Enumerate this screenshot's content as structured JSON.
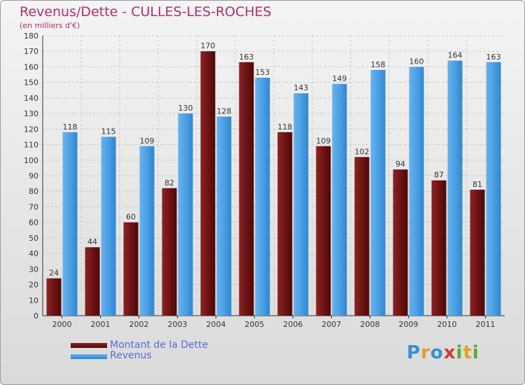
{
  "chart_data": {
    "type": "bar",
    "title": "Revenus/Dette - CULLES-LES-ROCHES",
    "subtitle": "(en milliers d'€)",
    "categories": [
      "2000",
      "2001",
      "2002",
      "2003",
      "2004",
      "2005",
      "2006",
      "2007",
      "2008",
      "2009",
      "2010",
      "2011"
    ],
    "series": [
      {
        "name": "Montant de la Dette",
        "color": "#7a1a1a",
        "values": [
          24,
          44,
          60,
          82,
          170,
          163,
          118,
          109,
          102,
          94,
          87,
          81
        ]
      },
      {
        "name": "Revenus",
        "color": "#4da3e6",
        "values": [
          118,
          115,
          109,
          130,
          128,
          153,
          143,
          149,
          158,
          160,
          164,
          163
        ]
      }
    ],
    "ylim": [
      0,
      180
    ],
    "ytick_step": 10,
    "grid": true,
    "legend_position": "bottom-left"
  },
  "logo": {
    "letters": [
      "P",
      "r",
      "o",
      "x",
      "i",
      "t",
      "i"
    ],
    "colors": [
      "#3a8fd8",
      "#e8a020",
      "#3a8fd8",
      "#d23b2b",
      "#58a83a",
      "#e8a020",
      "#58a83a"
    ]
  }
}
